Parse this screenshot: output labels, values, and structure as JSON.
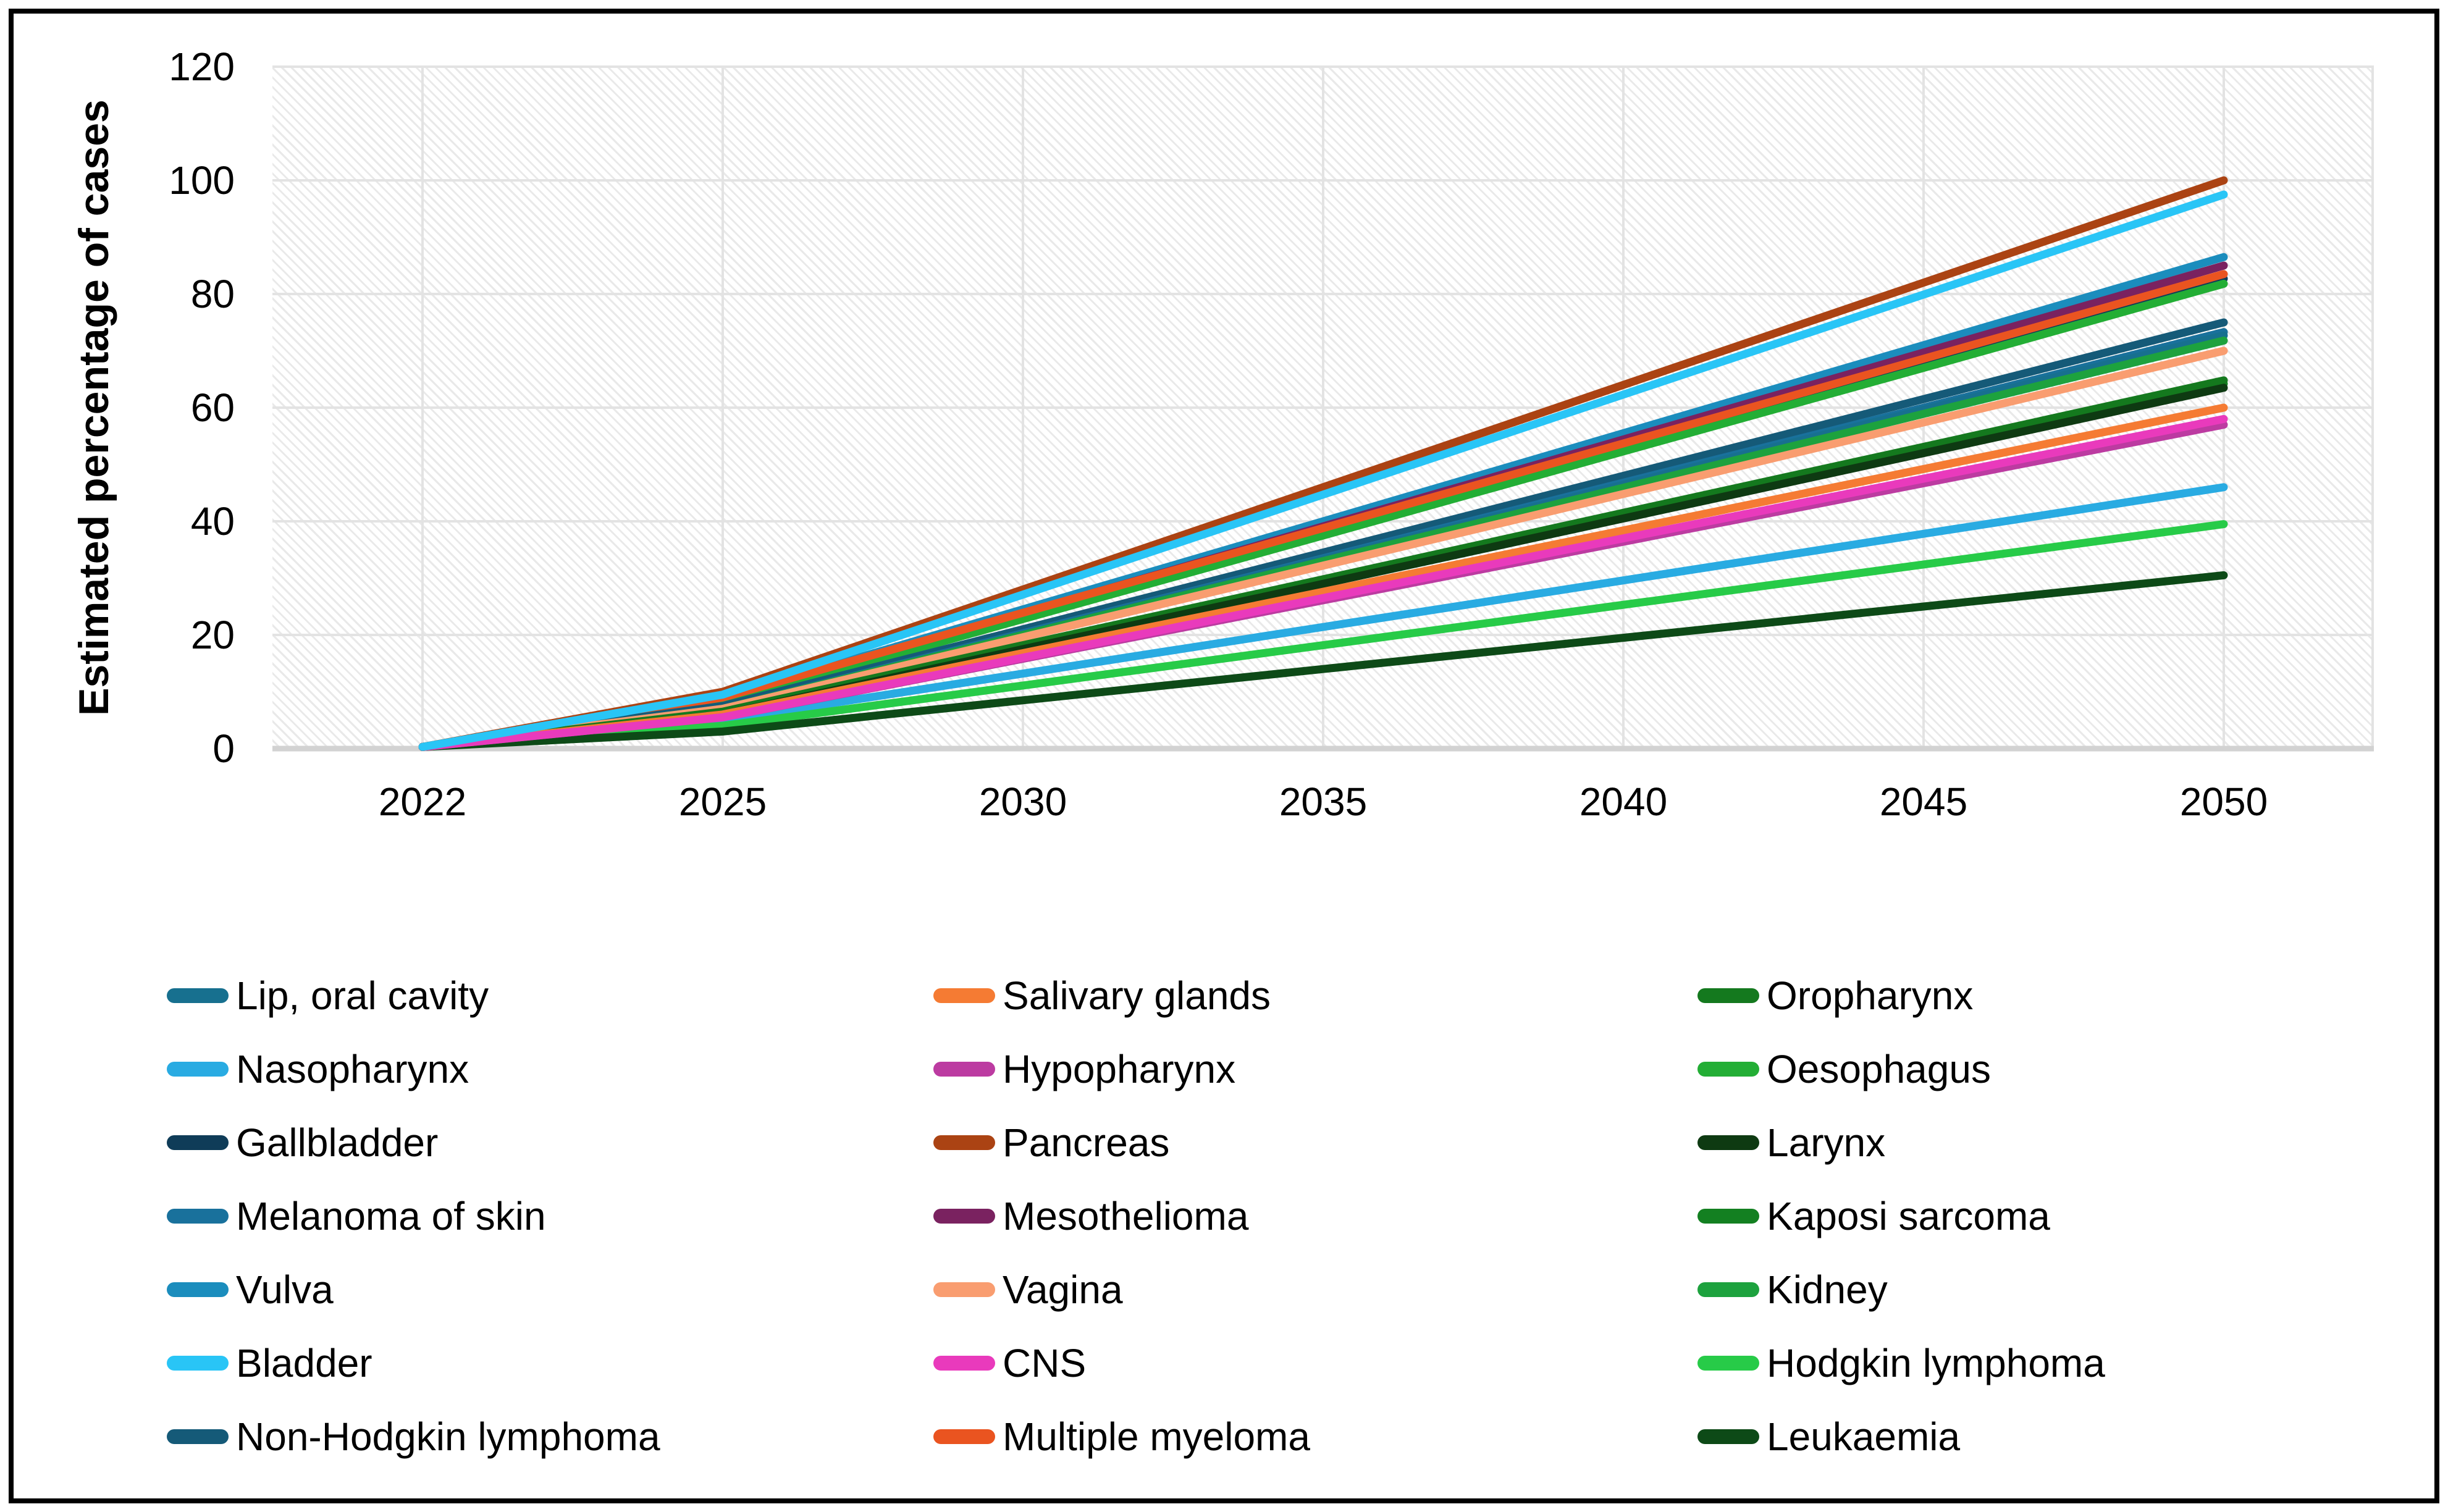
{
  "y_axis": {
    "title": "Estimated percentage of cases",
    "ticks": [
      0,
      20,
      40,
      60,
      80,
      100,
      120
    ],
    "min": 0,
    "max": 120
  },
  "x_axis": {
    "labels": [
      "2022",
      "2025",
      "2030",
      "2035",
      "2040",
      "2045",
      "2050"
    ]
  },
  "colors": {
    "background": "#ffffff",
    "border": "#000000",
    "gridline": "#e3e3e3",
    "axis_line": "#d2d2d2",
    "text": "#000000"
  },
  "chart_data": {
    "type": "line",
    "x": [
      2022,
      2025,
      2030,
      2035,
      2040,
      2045,
      2050
    ],
    "title": "",
    "xlabel": "",
    "ylabel": "Estimated percentage of cases",
    "ylim": [
      0,
      120
    ],
    "grid": true,
    "plot_background": "diagonal-hatch",
    "legend_position": "bottom",
    "series": [
      {
        "name": "Lip, oral cavity",
        "color": "#17708f",
        "draw_order": 11,
        "values": [
          0.3,
          7.0,
          20.1,
          33.3,
          46.4,
          59.6,
          72.7
        ]
      },
      {
        "name": "Nasopharynx",
        "color": "#29abe2",
        "draw_order": 1,
        "values": [
          0.3,
          5.0,
          13.2,
          21.4,
          29.6,
          37.8,
          46.0
        ]
      },
      {
        "name": "Gallbladder",
        "color": "#0f3c58",
        "draw_order": 6,
        "values": [
          0.3,
          8.0,
          22.9,
          37.9,
          52.8,
          67.8,
          82.7
        ]
      },
      {
        "name": "Melanoma of skin",
        "color": "#19719c",
        "draw_order": 10,
        "values": [
          0.3,
          7.0,
          20.3,
          33.5,
          46.8,
          60.0,
          73.3
        ]
      },
      {
        "name": "Vulva",
        "color": "#1b8dbd",
        "draw_order": 4,
        "values": [
          0.3,
          9.0,
          24.5,
          40.0,
          55.5,
          71.0,
          86.5
        ]
      },
      {
        "name": "Bladder",
        "color": "#29c5f6",
        "draw_order": 21,
        "values": [
          0.3,
          9.5,
          27.1,
          44.7,
          62.3,
          79.9,
          97.5
        ]
      },
      {
        "name": "Non-Hodgkin lymphoma",
        "color": "#155a78",
        "draw_order": 9,
        "values": [
          0.3,
          7.5,
          21.0,
          34.5,
          48.0,
          61.5,
          75.0
        ]
      },
      {
        "name": "Salivary glands",
        "color": "#f57b33",
        "draw_order": 17,
        "values": [
          0.3,
          6.0,
          16.8,
          27.6,
          38.4,
          49.2,
          60.0
        ]
      },
      {
        "name": "Hypopharynx",
        "color": "#bc3ba1",
        "draw_order": 18,
        "values": [
          0.3,
          5.5,
          15.8,
          26.1,
          36.4,
          46.7,
          57.0
        ]
      },
      {
        "name": "Pancreas",
        "color": "#ab4313",
        "draw_order": 20,
        "values": [
          0.3,
          10.0,
          28.0,
          46.0,
          64.0,
          82.0,
          100.0
        ]
      },
      {
        "name": "Mesothelioma",
        "color": "#7a2260",
        "draw_order": 5,
        "values": [
          0.3,
          8.5,
          23.8,
          39.1,
          54.4,
          69.7,
          85.0
        ]
      },
      {
        "name": "Vagina",
        "color": "#f99d70",
        "draw_order": 13,
        "values": [
          0.3,
          7.0,
          19.6,
          32.2,
          44.8,
          57.4,
          70.0
        ]
      },
      {
        "name": "CNS",
        "color": "#e93abc",
        "draw_order": 19,
        "values": [
          0.3,
          5.5,
          16.0,
          26.5,
          37.0,
          47.5,
          58.0
        ]
      },
      {
        "name": "Multiple myeloma",
        "color": "#ea5420",
        "draw_order": 8,
        "values": [
          0.3,
          9.0,
          23.9,
          38.8,
          53.7,
          68.6,
          83.5
        ]
      },
      {
        "name": "Oropharynx",
        "color": "#14791e",
        "draw_order": 15,
        "values": [
          0.3,
          6.5,
          18.2,
          29.8,
          41.5,
          53.1,
          64.8
        ]
      },
      {
        "name": "Oesophagus",
        "color": "#23ae35",
        "draw_order": 7,
        "values": [
          0.3,
          8.0,
          22.8,
          37.5,
          52.3,
          67.0,
          81.8
        ]
      },
      {
        "name": "Larynx",
        "color": "#0e3a12",
        "draw_order": 16,
        "values": [
          0.3,
          6.0,
          17.5,
          29.0,
          40.5,
          52.0,
          63.5
        ]
      },
      {
        "name": "Kaposi sarcoma",
        "color": "#138021",
        "draw_order": 14,
        "values": [
          0.3,
          6.3,
          17.9,
          29.5,
          41.0,
          52.6,
          64.2
        ]
      },
      {
        "name": "Kidney",
        "color": "#1da23e",
        "draw_order": 12,
        "values": [
          0.3,
          7.0,
          20.0,
          33.0,
          45.9,
          58.9,
          71.8
        ]
      },
      {
        "name": "Hodgkin lymphoma",
        "color": "#27cb48",
        "draw_order": 2,
        "values": [
          0.3,
          4.0,
          11.1,
          18.2,
          25.3,
          32.4,
          39.5
        ]
      },
      {
        "name": "Leukaemia",
        "color": "#0d4a17",
        "draw_order": 3,
        "values": [
          0.3,
          3.0,
          8.5,
          14.0,
          19.5,
          25.0,
          30.5
        ]
      }
    ]
  },
  "legend": {
    "columns": [
      [
        "Lip, oral cavity",
        "Nasopharynx",
        "Gallbladder",
        "Melanoma of skin",
        "Vulva",
        "Bladder",
        "Non-Hodgkin lymphoma"
      ],
      [
        "Salivary glands",
        "Hypopharynx",
        "Pancreas",
        "Mesothelioma",
        "Vagina",
        "CNS",
        "Multiple myeloma"
      ],
      [
        "Oropharynx",
        "Oesophagus",
        "Larynx",
        "Kaposi sarcoma",
        "Kidney",
        "Hodgkin lymphoma",
        "Leukaemia"
      ]
    ]
  }
}
